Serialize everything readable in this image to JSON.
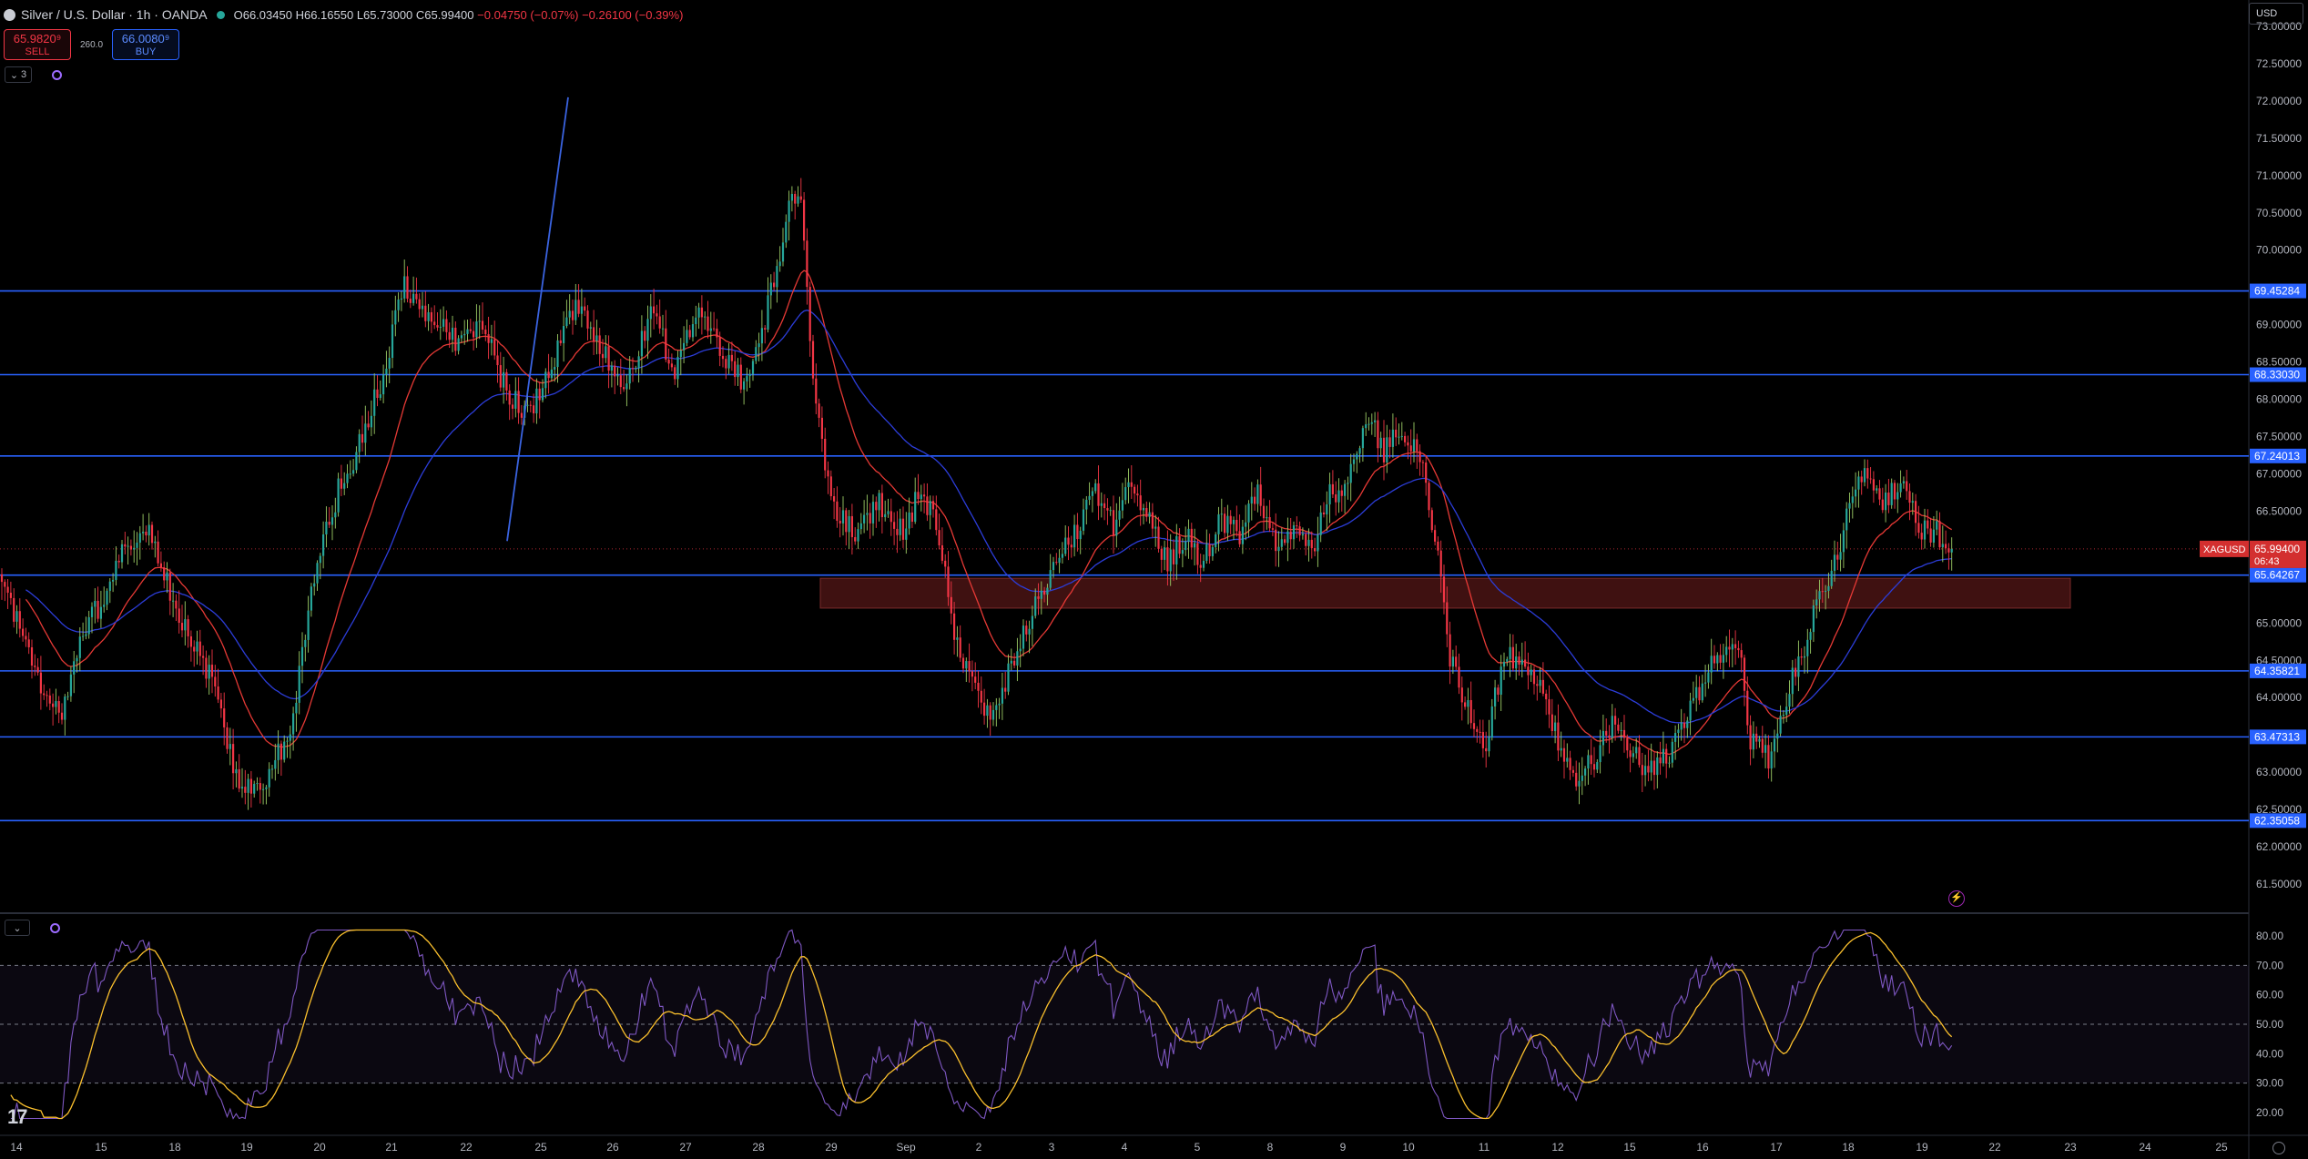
{
  "header": {
    "title": "Silver / U.S. Dollar · 1h · OANDA",
    "open": "O66.03450",
    "high": "H66.16550",
    "low": "L65.73000",
    "close": "C65.99400",
    "change": "−0.04750 (−0.07%)",
    "change_alt": "−0.26100 (−0.39%)"
  },
  "trade": {
    "sell_price": "65.9820⁹",
    "sell_label": "SELL",
    "spread": "260.0",
    "buy_price": "66.0080⁹",
    "buy_label": "BUY"
  },
  "controls": {
    "collapse_count": "3",
    "currency": "USD"
  },
  "colors": {
    "up": "#26a69a",
    "up_wick": "#9ccc65",
    "down": "#f23645",
    "hline": "#2962ff",
    "trend": "#3a63e0",
    "ma_fast": "#e53935",
    "ma_slow": "#2c3dd9",
    "rsi": "#7e57c2",
    "rsi_ma": "#fbc02d",
    "zone": "#4a1414",
    "label_blue": "#2962ff",
    "label_red": "#d32f2f"
  },
  "chart_data": {
    "type": "candlestick",
    "symbol": "XAGUSD",
    "current_price": "65.99400",
    "countdown": "06:43",
    "ylim": [
      61.2,
      73.4
    ],
    "y_ticks": [
      "73.00000",
      "72.50000",
      "72.00000",
      "71.50000",
      "71.00000",
      "70.50000",
      "70.00000",
      "69.00000",
      "68.50000",
      "68.00000",
      "67.50000",
      "67.00000",
      "66.50000",
      "65.00000",
      "64.50000",
      "64.00000",
      "63.50000",
      "63.00000",
      "62.50000",
      "62.00000",
      "61.50000"
    ],
    "x_ticks": [
      "14",
      "15",
      "18",
      "19",
      "20",
      "21",
      "22",
      "25",
      "26",
      "27",
      "28",
      "29",
      "Sep",
      "2",
      "3",
      "4",
      "5",
      "8",
      "9",
      "10",
      "11",
      "12",
      "15",
      "16",
      "17",
      "18",
      "19",
      "22",
      "23",
      "24",
      "25"
    ],
    "horizontal_levels": [
      "69.45284",
      "68.33030",
      "67.24013",
      "65.64267",
      "64.35821",
      "63.47313",
      "62.35058"
    ],
    "trendline": {
      "start": [
        "25",
        72.05
      ],
      "end": [
        "22",
        66.1
      ]
    },
    "zone": {
      "from": "29",
      "to": "23",
      "top": 65.6,
      "bottom": 65.2
    },
    "close_path": [
      [
        0,
        65.5
      ],
      [
        6,
        64.9
      ],
      [
        14,
        64.0
      ],
      [
        20,
        63.7
      ],
      [
        26,
        64.8
      ],
      [
        32,
        65.2
      ],
      [
        40,
        65.9
      ],
      [
        48,
        66.3
      ],
      [
        56,
        65.4
      ],
      [
        62,
        64.9
      ],
      [
        70,
        64.2
      ],
      [
        80,
        62.7
      ],
      [
        88,
        62.9
      ],
      [
        96,
        63.6
      ],
      [
        104,
        65.6
      ],
      [
        112,
        66.8
      ],
      [
        118,
        67.3
      ],
      [
        126,
        68.2
      ],
      [
        134,
        69.6
      ],
      [
        140,
        69.1
      ],
      [
        146,
        69.0
      ],
      [
        152,
        68.7
      ],
      [
        160,
        69.0
      ],
      [
        168,
        68.1
      ],
      [
        176,
        67.8
      ],
      [
        184,
        68.6
      ],
      [
        192,
        69.3
      ],
      [
        200,
        68.6
      ],
      [
        208,
        68.2
      ],
      [
        216,
        69.2
      ],
      [
        224,
        68.4
      ],
      [
        232,
        69.3
      ],
      [
        240,
        68.6
      ],
      [
        248,
        68.2
      ],
      [
        256,
        69.4
      ],
      [
        262,
        70.6
      ],
      [
        266,
        70.8
      ],
      [
        270,
        68.2
      ],
      [
        276,
        66.6
      ],
      [
        284,
        66.2
      ],
      [
        292,
        66.6
      ],
      [
        300,
        66.2
      ],
      [
        306,
        66.8
      ],
      [
        312,
        66.2
      ],
      [
        316,
        65.0
      ],
      [
        322,
        64.3
      ],
      [
        328,
        63.8
      ],
      [
        334,
        64.2
      ],
      [
        340,
        64.8
      ],
      [
        346,
        65.4
      ],
      [
        352,
        65.9
      ],
      [
        358,
        66.2
      ],
      [
        364,
        66.8
      ],
      [
        370,
        66.3
      ],
      [
        376,
        66.9
      ],
      [
        382,
        66.4
      ],
      [
        388,
        65.8
      ],
      [
        394,
        66.2
      ],
      [
        400,
        65.8
      ],
      [
        406,
        66.4
      ],
      [
        412,
        66.2
      ],
      [
        418,
        66.8
      ],
      [
        424,
        66.1
      ],
      [
        430,
        66.3
      ],
      [
        436,
        66.0
      ],
      [
        442,
        66.7
      ],
      [
        448,
        66.8
      ],
      [
        454,
        67.8
      ],
      [
        460,
        67.3
      ],
      [
        466,
        67.6
      ],
      [
        472,
        67.2
      ],
      [
        478,
        66.0
      ],
      [
        482,
        64.5
      ],
      [
        488,
        63.9
      ],
      [
        494,
        63.4
      ],
      [
        500,
        64.6
      ],
      [
        506,
        64.4
      ],
      [
        512,
        64.1
      ],
      [
        518,
        63.4
      ],
      [
        524,
        62.9
      ],
      [
        530,
        63.2
      ],
      [
        536,
        63.6
      ],
      [
        542,
        63.3
      ],
      [
        548,
        63.0
      ],
      [
        554,
        63.2
      ],
      [
        560,
        63.7
      ],
      [
        566,
        64.2
      ],
      [
        572,
        64.6
      ],
      [
        578,
        64.8
      ],
      [
        582,
        63.4
      ],
      [
        588,
        63.2
      ],
      [
        594,
        64.0
      ],
      [
        600,
        64.7
      ],
      [
        606,
        65.5
      ],
      [
        610,
        65.8
      ],
      [
        616,
        66.7
      ],
      [
        620,
        67.1
      ],
      [
        626,
        66.6
      ],
      [
        632,
        66.9
      ],
      [
        638,
        66.3
      ],
      [
        644,
        66.2
      ],
      [
        648,
        65.99
      ]
    ],
    "rsi": {
      "levels": {
        "upper": 70,
        "middle": 50,
        "lower": 30
      },
      "ylim": [
        17,
        84
      ],
      "y_ticks": [
        "80.00",
        "70.00",
        "60.00",
        "50.00",
        "40.00",
        "30.00",
        "20.00"
      ]
    }
  }
}
